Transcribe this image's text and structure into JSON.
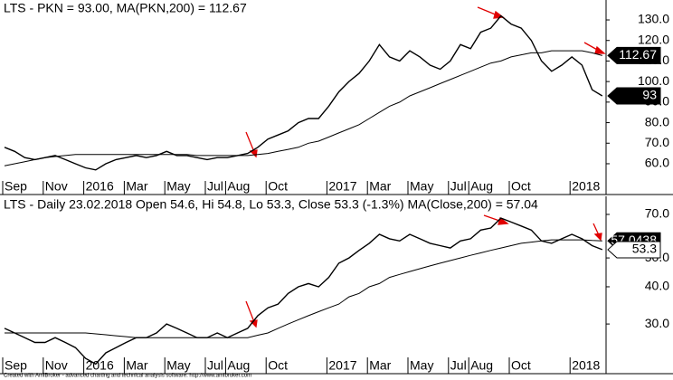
{
  "chart_data": [
    {
      "type": "line",
      "title": "LTS - PKN = 93.00, MA(PKN,200) = 112.67",
      "categories": [
        "Sep",
        null,
        null,
        null,
        "Nov",
        null,
        null,
        null,
        "2016",
        null,
        null,
        null,
        "Mar",
        null,
        null,
        null,
        "May",
        null,
        null,
        null,
        "Jul",
        null,
        "Aug",
        null,
        null,
        null,
        "Oct",
        null,
        null,
        null,
        null,
        null,
        "2017",
        null,
        null,
        null,
        "Mar",
        null,
        null,
        null,
        "May",
        null,
        null,
        null,
        "Jul",
        null,
        "Aug",
        null,
        null,
        null,
        "Oct",
        null,
        null,
        null,
        null,
        null,
        "2018",
        null,
        null,
        null
      ],
      "log": false,
      "ylim": [
        52.5,
        139.7
      ],
      "yticks": [
        {
          "value": 60,
          "label": "60.0"
        },
        {
          "value": 70,
          "label": "70.0"
        },
        {
          "value": 80,
          "label": "80.0"
        },
        {
          "value": 90,
          "label": "90.0"
        },
        {
          "value": 100,
          "label": "100.0"
        },
        {
          "value": 110,
          "label": "110.0"
        },
        {
          "value": 120,
          "label": "120.0"
        },
        {
          "value": 130,
          "label": "130.0"
        }
      ],
      "series": [
        {
          "name": "PKN",
          "color": "#000000",
          "values": [
            68,
            66,
            63,
            62,
            63,
            64,
            62,
            60,
            58,
            57,
            60,
            62,
            63,
            64,
            63,
            64,
            66,
            64,
            64,
            63,
            62,
            63,
            63,
            64,
            65,
            68,
            72,
            74,
            76,
            80,
            82,
            82,
            88,
            95,
            100,
            104,
            110,
            118,
            112,
            110,
            115,
            112,
            108,
            106,
            110,
            118,
            116,
            124,
            126,
            132,
            128,
            126,
            120,
            110,
            105,
            108,
            112,
            108,
            96,
            93
          ]
        },
        {
          "name": "MA(PKN,200)",
          "color": "#000000",
          "values": [
            59,
            60,
            61,
            62,
            63,
            63.5,
            64,
            64.5,
            64.5,
            64.5,
            64.5,
            64.5,
            64.5,
            64.5,
            64.5,
            64.5,
            64.5,
            64.5,
            64.5,
            64,
            64,
            64,
            64,
            64,
            64,
            64.5,
            65,
            66,
            67,
            68,
            70,
            71,
            73,
            75,
            77,
            79,
            82,
            85,
            88,
            90,
            93,
            95,
            97,
            99,
            101,
            103,
            105,
            107,
            109,
            110,
            112,
            113,
            114,
            114,
            115,
            115,
            115,
            115,
            114,
            112.67
          ]
        }
      ],
      "badges": [
        {
          "value": 112.67,
          "label": "112.67",
          "fill": "#000000"
        },
        {
          "value": 93,
          "label": "93",
          "fill": "#000000"
        }
      ]
    },
    {
      "type": "line",
      "title": "LTS - Daily 23.02.2018 Open 54.6, Hi 54.8, Lo 53.3, Close 53.3 (-1.3%) MA(Close,200) = 57.04",
      "categories": [
        "Sep",
        null,
        null,
        null,
        "Nov",
        null,
        null,
        null,
        "2016",
        null,
        null,
        null,
        "Mar",
        null,
        null,
        null,
        "May",
        null,
        null,
        null,
        "Jul",
        null,
        "Aug",
        null,
        null,
        null,
        "Oct",
        null,
        null,
        null,
        null,
        null,
        "2017",
        null,
        null,
        null,
        "Mar",
        null,
        null,
        null,
        "May",
        null,
        null,
        null,
        "Jul",
        null,
        "Aug",
        null,
        null,
        null,
        "Oct",
        null,
        null,
        null,
        null,
        null,
        "2018",
        null,
        null,
        null
      ],
      "log": true,
      "ylim": [
        23.5,
        80.5
      ],
      "yticks": [
        {
          "value": 30,
          "label": "30.0"
        },
        {
          "value": 40,
          "label": "40.0"
        },
        {
          "value": 50,
          "label": "50.0"
        },
        {
          "value": 70,
          "label": "70.0"
        }
      ],
      "series": [
        {
          "name": "Close",
          "color": "#000000",
          "values": [
            29,
            28,
            27,
            26,
            26,
            27,
            26,
            25,
            23,
            22,
            24,
            25,
            26,
            27,
            27,
            28,
            30,
            29,
            28,
            27,
            27,
            28,
            27,
            28,
            29,
            32,
            34,
            35,
            38,
            40,
            41,
            40,
            43,
            48,
            50,
            53,
            56,
            60,
            58,
            57,
            60,
            58,
            56,
            55,
            54,
            57,
            58,
            62,
            63,
            68,
            66,
            64,
            62,
            57,
            56,
            58,
            60,
            58,
            55,
            53.3
          ]
        },
        {
          "name": "MA(Close,200)",
          "color": "#000000",
          "values": [
            28,
            28,
            28,
            28,
            28,
            28,
            28,
            28,
            28,
            27.8,
            27.6,
            27.4,
            27.2,
            27,
            27,
            27,
            27,
            27,
            27,
            27,
            27,
            27,
            27,
            27,
            27,
            27.5,
            28,
            29,
            30,
            31,
            32,
            33,
            34,
            35,
            37,
            38,
            40,
            41,
            43,
            44,
            45,
            46,
            47,
            48,
            49,
            50,
            51,
            52,
            53,
            54,
            55,
            56,
            56.5,
            57,
            57.5,
            57.5,
            57.5,
            57.5,
            57.2,
            57.0438
          ]
        }
      ],
      "badges": [
        {
          "value": 57.0438,
          "label": "57.0438",
          "fill": "#000000"
        },
        {
          "value": 53.3,
          "label": "53.3",
          "fill": "#ffffff"
        }
      ]
    }
  ],
  "footer": "Created with AmiBroker - advanced charting and technical analysis software. http://www.amibroker.com"
}
